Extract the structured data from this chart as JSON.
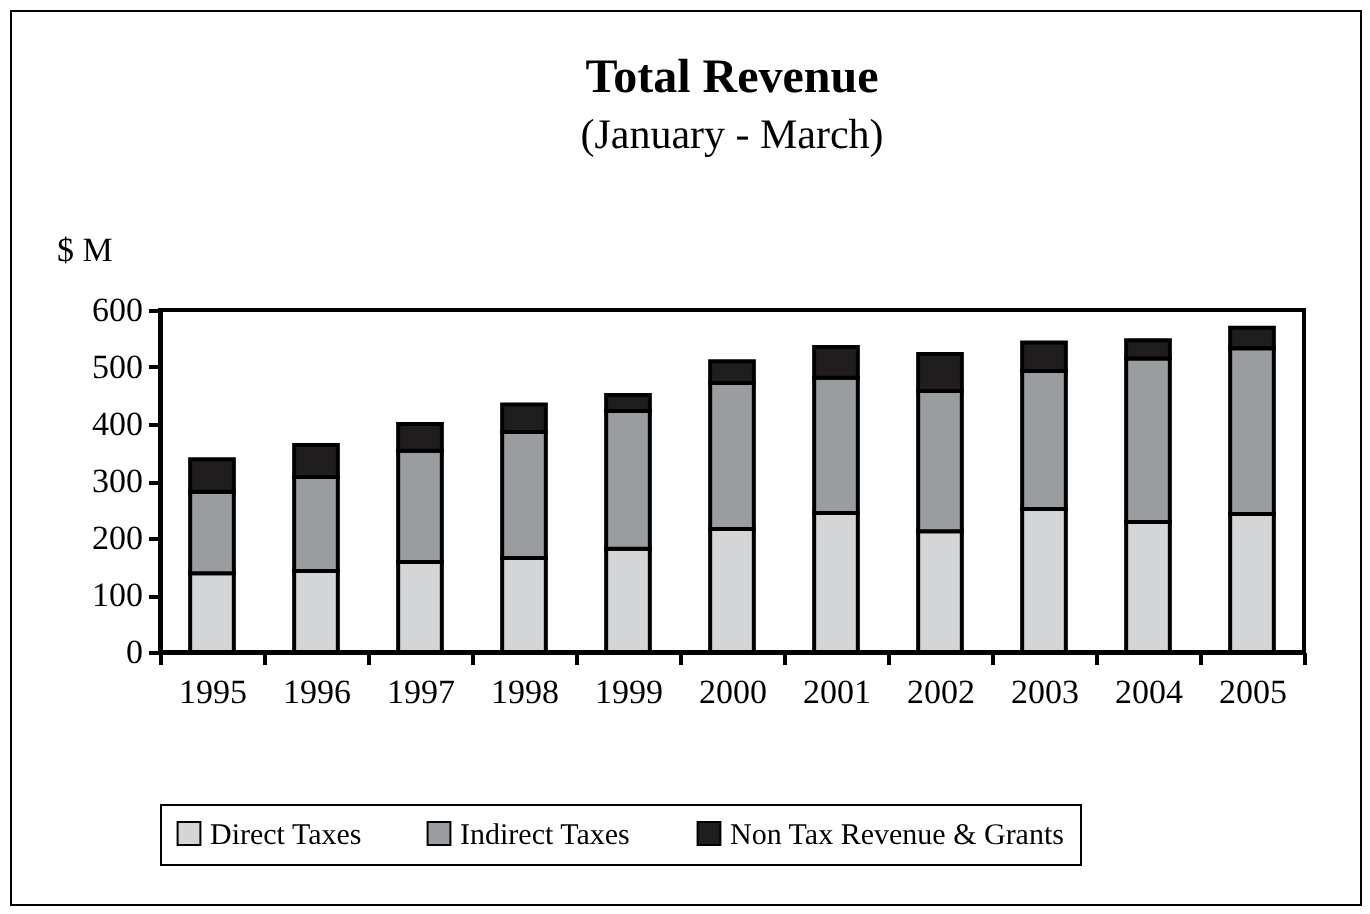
{
  "chart_data": {
    "type": "bar",
    "title": "Total Revenue",
    "subtitle": "(January - March)",
    "ylabel": "$ M",
    "categories": [
      "1995",
      "1996",
      "1997",
      "1998",
      "1999",
      "2000",
      "2001",
      "2002",
      "2003",
      "2004",
      "2005"
    ],
    "stacked": true,
    "series": [
      {
        "name": "Direct Taxes",
        "color": "#d4d5d7",
        "values": [
          138,
          142,
          158,
          165,
          181,
          216,
          244,
          212,
          251,
          228,
          242
        ]
      },
      {
        "name": "Indirect Taxes",
        "color": "#9a9d9f",
        "values": [
          143,
          165,
          195,
          221,
          242,
          256,
          237,
          246,
          242,
          287,
          291
        ]
      },
      {
        "name": "Non Tax Revenue & Grants",
        "color": "#1f1d1d",
        "values": [
          57,
          56,
          47,
          48,
          28,
          38,
          54,
          65,
          50,
          32,
          36
        ]
      }
    ],
    "ylim": [
      0,
      600
    ],
    "yticks": [
      0,
      100,
      200,
      300,
      400,
      500,
      600
    ],
    "legend": "bottom"
  }
}
